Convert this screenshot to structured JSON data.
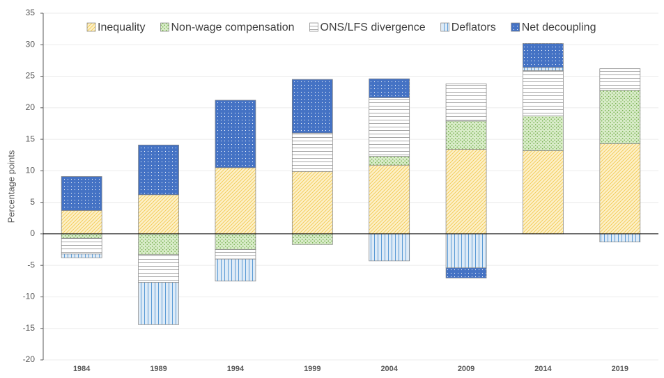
{
  "chart_data": {
    "type": "stacked-bar",
    "y_label": "Percentage points",
    "categories": [
      "1984",
      "1989",
      "1994",
      "1999",
      "2004",
      "2009",
      "2014",
      "2019"
    ],
    "series": [
      {
        "name": "Inequality",
        "color": "#f2c94c",
        "pattern": "diagonal",
        "values": [
          3.7,
          6.2,
          10.5,
          9.9,
          10.9,
          13.4,
          13.2,
          14.3
        ]
      },
      {
        "name": "Non-wage compensation",
        "color": "#70ad47",
        "pattern": "dots",
        "values": [
          -0.7,
          -3.3,
          -2.5,
          -1.7,
          1.4,
          4.5,
          5.5,
          8.5
        ]
      },
      {
        "name": "ONS/LFS divergence",
        "color": "#7f7f7f",
        "pattern": "horizontal",
        "values": [
          -2.5,
          -4.4,
          -1.5,
          6.1,
          9.3,
          5.9,
          7.2,
          3.4
        ]
      },
      {
        "name": "Deflators",
        "color": "#5b9bd5",
        "pattern": "vertical",
        "values": [
          -0.6,
          -6.7,
          -3.5,
          0,
          -4.3,
          -5.4,
          0.5,
          -1.3
        ]
      },
      {
        "name": "Net decoupling",
        "color": "#4472c4",
        "pattern": "dense-dots",
        "values": [
          5.4,
          7.9,
          10.7,
          8.5,
          3.0,
          -1.6,
          3.8,
          0
        ]
      }
    ],
    "ylim": [
      -20,
      35
    ],
    "yticks": [
      -20,
      -15,
      -10,
      -5,
      0,
      5,
      10,
      15,
      20,
      25,
      30,
      35
    ],
    "grid": true,
    "legend": "top"
  }
}
